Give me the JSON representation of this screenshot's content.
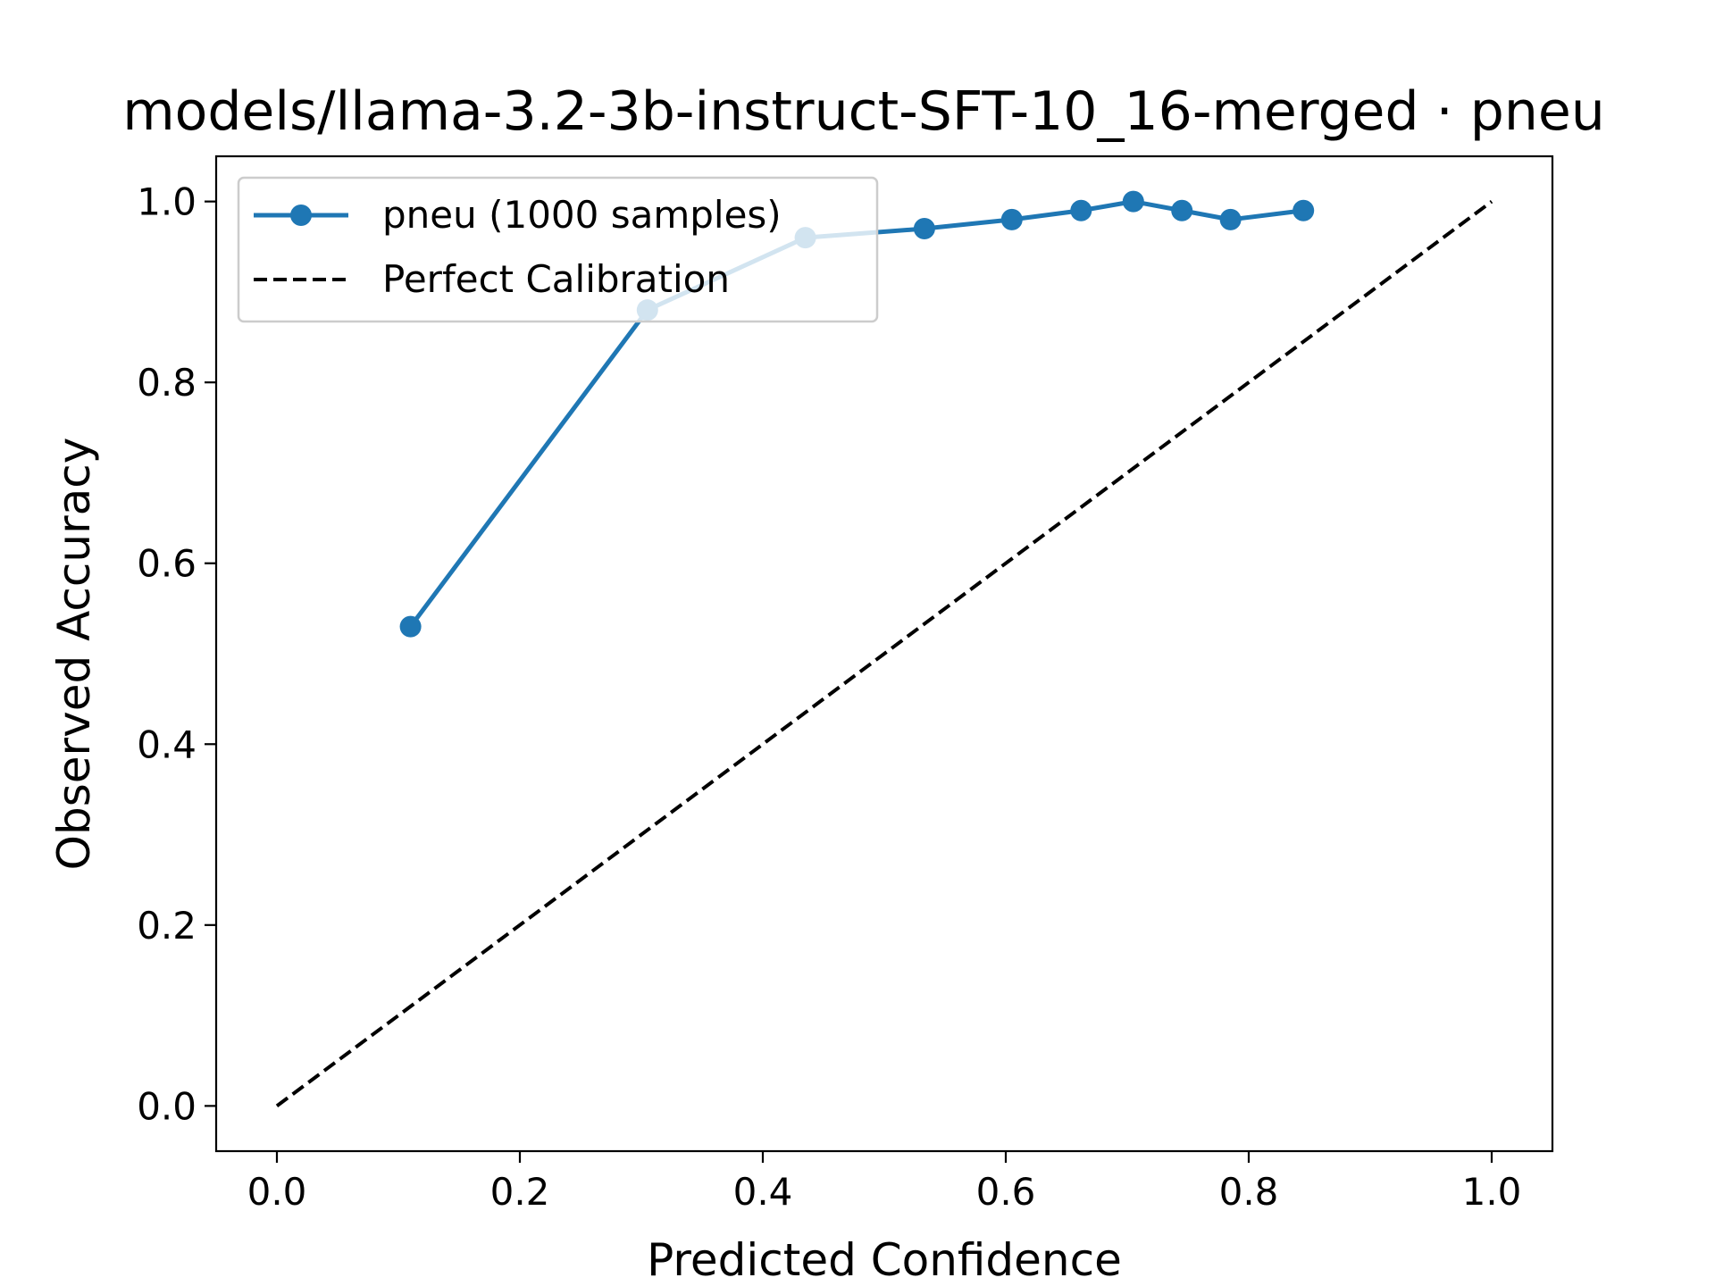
{
  "chart_data": {
    "type": "line",
    "title": "models/llama-3.2-3b-instruct-SFT-10_16-merged · pneu",
    "xlabel": "Predicted Confidence",
    "ylabel": "Observed Accuracy",
    "xlim": [
      -0.05,
      1.05
    ],
    "ylim": [
      -0.05,
      1.05
    ],
    "x_ticks": [
      0.0,
      0.2,
      0.4,
      0.6,
      0.8,
      1.0
    ],
    "y_ticks": [
      0.0,
      0.2,
      0.4,
      0.6,
      0.8,
      1.0
    ],
    "x_tick_labels": [
      "0.0",
      "0.2",
      "0.4",
      "0.6",
      "0.8",
      "1.0"
    ],
    "y_tick_labels": [
      "0.0",
      "0.2",
      "0.4",
      "0.6",
      "0.8",
      "1.0"
    ],
    "grid": false,
    "legend_position": "top-left",
    "series": [
      {
        "name": "pneu (1000 samples)",
        "color": "#1f77b4",
        "style": "solid-with-markers",
        "x": [
          0.11,
          0.305,
          0.435,
          0.533,
          0.605,
          0.662,
          0.705,
          0.745,
          0.785,
          0.845
        ],
        "y": [
          0.53,
          0.88,
          0.96,
          0.97,
          0.98,
          0.99,
          1.0,
          0.99,
          0.98,
          0.99
        ]
      },
      {
        "name": "Perfect Calibration",
        "color": "#000000",
        "style": "dashed",
        "x": [
          0.0,
          1.0
        ],
        "y": [
          0.0,
          1.0
        ]
      }
    ]
  }
}
